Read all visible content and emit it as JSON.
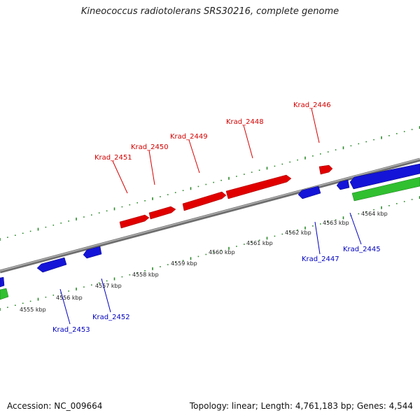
{
  "title": "Kineococcus radiotolerans SRS30216, complete genome",
  "footer": {
    "accession": "Accession: NC_009664",
    "summary": "Topology: linear; Length: 4,761,183 bp; Genes: 4,544"
  },
  "colors": {
    "forward_gene": "#e00000",
    "reverse_gene": "#1414d8",
    "other_feature": "#30c030",
    "backbone": "#888888",
    "ruler": "#2a8a2a",
    "forward_label": "#d40000",
    "reverse_label": "#0000c0"
  },
  "ruler_labels": [
    "4555 kbp",
    "4556 kbp",
    "4557 kbp",
    "4558 kbp",
    "4559 kbp",
    "4560 kbp",
    "4561 kbp",
    "4562 kbp",
    "4563 kbp",
    "4564 kbp"
  ],
  "forward_genes": [
    {
      "label": "Krad_2451"
    },
    {
      "label": "Krad_2450"
    },
    {
      "label": "Krad_2449"
    },
    {
      "label": "Krad_2448"
    },
    {
      "label": "Krad_2446"
    }
  ],
  "reverse_genes": [
    {
      "label": "Krad_2453"
    },
    {
      "label": "Krad_2452"
    },
    {
      "label": "Krad_2447"
    },
    {
      "label": "Krad_2445"
    }
  ]
}
